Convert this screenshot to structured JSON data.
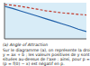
{
  "chart_data": {
    "type": "line",
    "title": "(a) Angle of Attraction",
    "x": [
      0,
      1,
      2,
      3,
      4,
      5,
      6,
      7,
      8,
      9,
      10
    ],
    "series": [
      {
        "color": "#1f5fa8",
        "line_style": "solid",
        "values": [
          0.9,
          0.84,
          0.77,
          0.7,
          0.63,
          0.56,
          0.49,
          0.42,
          0.35,
          0.27,
          0.2
        ]
      },
      {
        "color": "#c0392b",
        "line_style": "dashed",
        "values": [
          0.95,
          0.93,
          0.9,
          0.86,
          0.82,
          0.78,
          0.75,
          0.72,
          0.7,
          0.68,
          0.66
        ]
      }
    ],
    "xlim": [
      0,
      10
    ],
    "xticks": [
      0,
      10
    ],
    "ylim": [
      0,
      1
    ],
    "yticks": [
      0,
      1
    ],
    "grid": false,
    "tick_labels": false,
    "annotations": [
      "Sur le diagramme (a), on représente la droite d'équation :",
      "y = ax + b ; les valeurs positives de y sont",
      "situées au-dessus de l'axe ; ainsi, pour p = x,",
      "(p = f(0) − x) est négatif en p."
    ]
  }
}
